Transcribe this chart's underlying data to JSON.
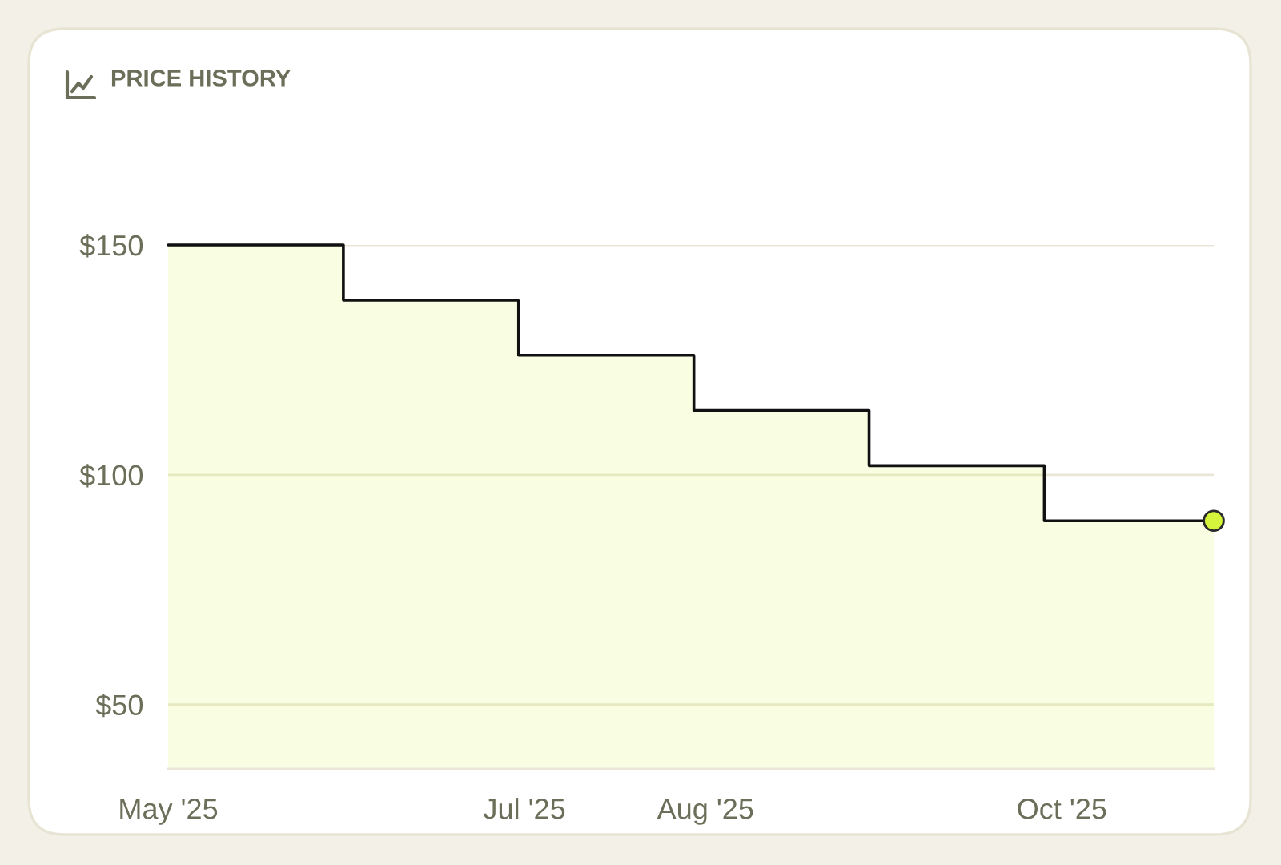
{
  "chart_data": {
    "type": "area",
    "title": "PRICE HISTORY",
    "x": [
      "2025-05-01",
      "2025-05-31",
      "2025-05-31",
      "2025-06-30",
      "2025-06-30",
      "2025-07-30",
      "2025-07-30",
      "2025-08-29",
      "2025-08-29",
      "2025-09-28",
      "2025-09-28",
      "2025-10-27"
    ],
    "series": [
      {
        "color": "#d4f53c",
        "values": [
          150,
          150,
          138,
          138,
          126,
          126,
          114,
          114,
          102,
          102,
          90,
          90
        ]
      },
      {
        "type": "scatter",
        "marker": "circle",
        "color": "#d4f53c",
        "x": [
          "2025-10-27"
        ],
        "values": [
          90
        ]
      }
    ],
    "xlim": [
      "2025-05-01",
      "2025-10-27"
    ],
    "xticks": [
      {
        "value": "2025-05-01",
        "label": "May '25"
      },
      {
        "value": "2025-07-01",
        "label": "Jul '25"
      },
      {
        "value": "2025-08-01",
        "label": "Aug '25"
      },
      {
        "value": "2025-10-01",
        "label": "Oct '25"
      }
    ],
    "ylim": [
      36,
      150
    ],
    "yticks": [
      {
        "value": 50,
        "label": "$50"
      },
      {
        "value": 100,
        "label": "$100"
      },
      {
        "value": 150,
        "label": "$150"
      }
    ],
    "grid": "y"
  }
}
